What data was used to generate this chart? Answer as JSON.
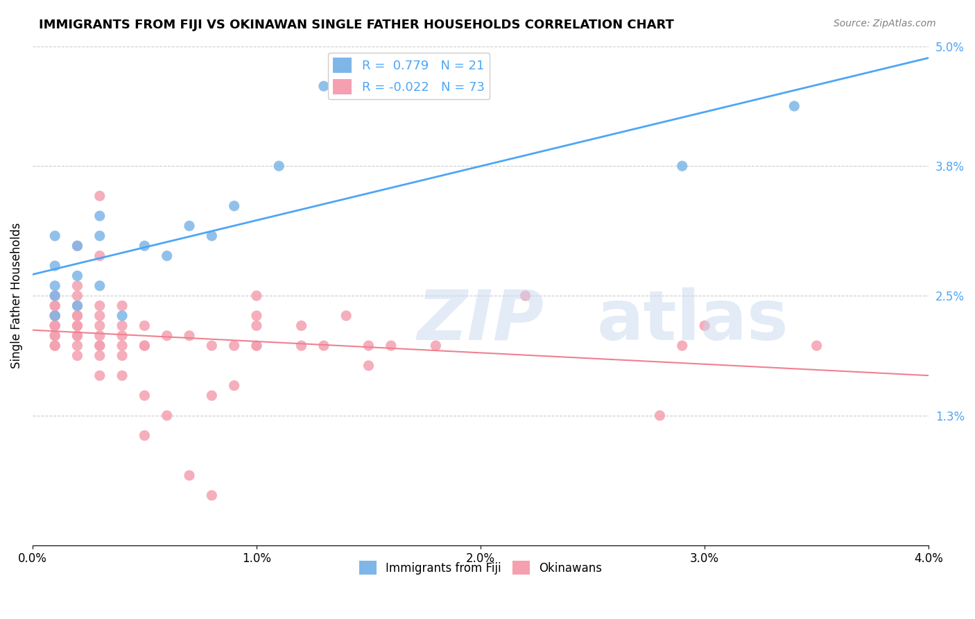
{
  "title": "IMMIGRANTS FROM FIJI VS OKINAWAN SINGLE FATHER HOUSEHOLDS CORRELATION CHART",
  "source": "Source: ZipAtlas.com",
  "xlabel_bottom": "",
  "ylabel": "Single Father Households",
  "x_min": 0.0,
  "x_max": 0.04,
  "y_min": 0.0,
  "y_max": 0.05,
  "x_ticks": [
    0.0,
    0.01,
    0.02,
    0.03,
    0.04
  ],
  "x_tick_labels": [
    "0.0%",
    "1.0%",
    "2.0%",
    "3.0%",
    "4.0%"
  ],
  "y_tick_labels_right": [
    "",
    "1.3%",
    "",
    "2.5%",
    "",
    "3.8%",
    "",
    "5.0%"
  ],
  "fiji_R": 0.779,
  "fiji_N": 21,
  "okinawa_R": -0.022,
  "okinawa_N": 73,
  "fiji_color": "#7eb6e8",
  "okinawa_color": "#f4a0b0",
  "fiji_line_color": "#4da6f5",
  "okinawa_line_color": "#f08090",
  "watermark_color": "#c8d8f0",
  "background_color": "#ffffff",
  "fiji_scatter_x": [
    0.001,
    0.002,
    0.001,
    0.003,
    0.002,
    0.001,
    0.001,
    0.002,
    0.001,
    0.003,
    0.004,
    0.006,
    0.003,
    0.005,
    0.007,
    0.008,
    0.009,
    0.011,
    0.013,
    0.029,
    0.034
  ],
  "fiji_scatter_y": [
    0.025,
    0.027,
    0.028,
    0.026,
    0.024,
    0.026,
    0.023,
    0.03,
    0.031,
    0.033,
    0.023,
    0.029,
    0.031,
    0.03,
    0.032,
    0.031,
    0.034,
    0.038,
    0.046,
    0.038,
    0.044
  ],
  "okinawa_scatter_x": [
    0.001,
    0.001,
    0.001,
    0.001,
    0.001,
    0.001,
    0.001,
    0.001,
    0.001,
    0.001,
    0.001,
    0.001,
    0.001,
    0.002,
    0.002,
    0.002,
    0.002,
    0.002,
    0.002,
    0.002,
    0.002,
    0.002,
    0.002,
    0.002,
    0.002,
    0.003,
    0.003,
    0.003,
    0.003,
    0.003,
    0.003,
    0.003,
    0.003,
    0.003,
    0.003,
    0.004,
    0.004,
    0.004,
    0.004,
    0.004,
    0.004,
    0.005,
    0.005,
    0.005,
    0.005,
    0.005,
    0.006,
    0.006,
    0.007,
    0.007,
    0.008,
    0.008,
    0.008,
    0.009,
    0.009,
    0.01,
    0.01,
    0.01,
    0.01,
    0.01,
    0.012,
    0.012,
    0.013,
    0.014,
    0.015,
    0.015,
    0.016,
    0.018,
    0.022,
    0.029,
    0.03,
    0.035,
    0.028
  ],
  "okinawa_scatter_y": [
    0.02,
    0.021,
    0.021,
    0.022,
    0.022,
    0.022,
    0.023,
    0.023,
    0.023,
    0.024,
    0.024,
    0.025,
    0.02,
    0.019,
    0.02,
    0.021,
    0.021,
    0.022,
    0.022,
    0.023,
    0.023,
    0.024,
    0.025,
    0.026,
    0.03,
    0.017,
    0.019,
    0.02,
    0.021,
    0.022,
    0.023,
    0.024,
    0.029,
    0.035,
    0.02,
    0.017,
    0.019,
    0.02,
    0.021,
    0.022,
    0.024,
    0.011,
    0.015,
    0.02,
    0.022,
    0.02,
    0.013,
    0.021,
    0.007,
    0.021,
    0.005,
    0.015,
    0.02,
    0.016,
    0.02,
    0.02,
    0.02,
    0.022,
    0.023,
    0.025,
    0.02,
    0.022,
    0.02,
    0.023,
    0.018,
    0.02,
    0.02,
    0.02,
    0.025,
    0.02,
    0.022,
    0.02,
    0.013
  ]
}
